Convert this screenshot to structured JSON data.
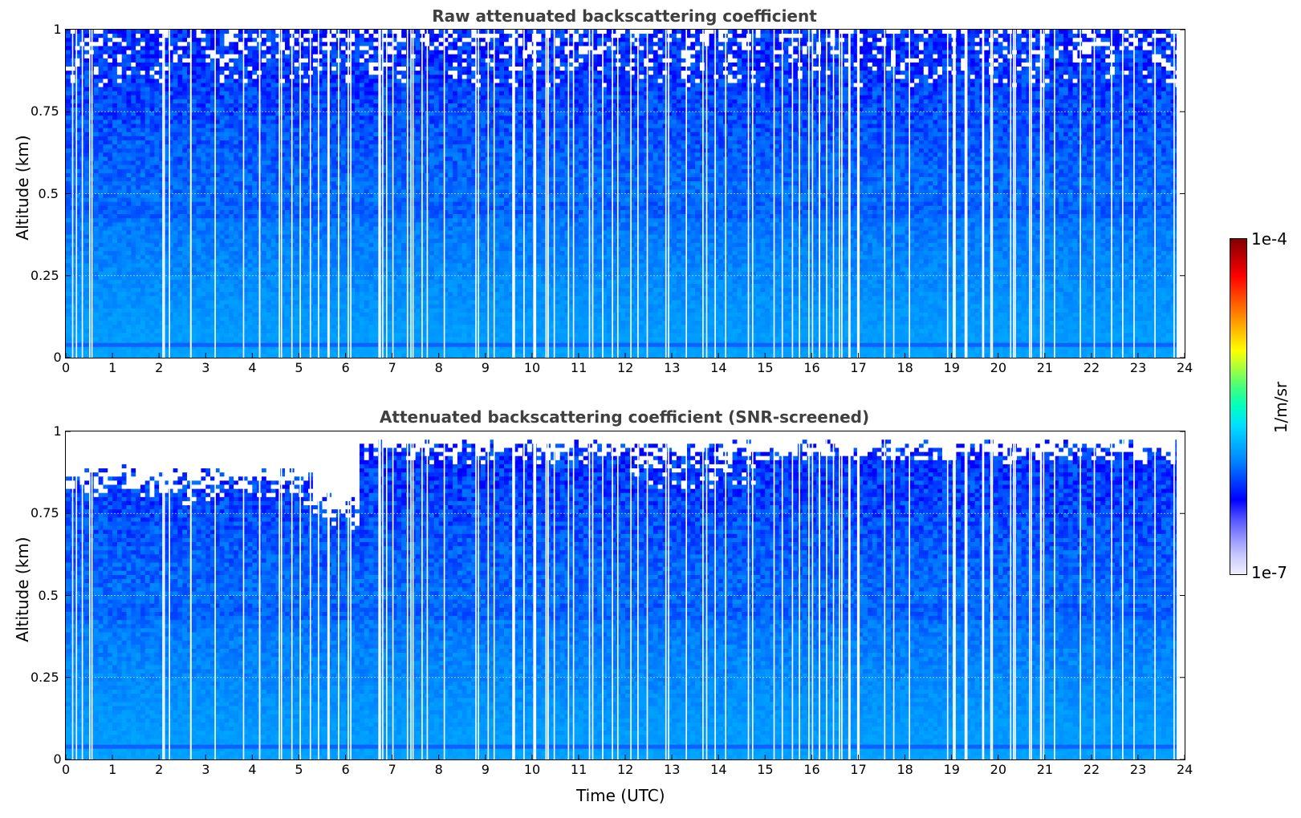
{
  "chart_data": [
    {
      "type": "heatmap",
      "title": "Raw attenuated backscattering coefficient",
      "xlabel": "",
      "ylabel": "Altitude (km)",
      "xlim": [
        0,
        24
      ],
      "ylim": [
        0,
        1
      ],
      "xticks": [
        "0",
        "1",
        "2",
        "3",
        "4",
        "5",
        "6",
        "7",
        "8",
        "9",
        "10",
        "11",
        "12",
        "13",
        "14",
        "15",
        "16",
        "17",
        "18",
        "19",
        "20",
        "21",
        "22",
        "23",
        "24"
      ],
      "yticks": [
        "0",
        "0.25",
        "0.5",
        "0.75",
        "1"
      ],
      "grid": true,
      "screened": false
    },
    {
      "type": "heatmap",
      "title": "Attenuated backscattering coefficient (SNR-screened)",
      "xlabel": "Time (UTC)",
      "ylabel": "Altitude (km)",
      "xlim": [
        0,
        24
      ],
      "ylim": [
        0,
        1
      ],
      "xticks": [
        "0",
        "1",
        "2",
        "3",
        "4",
        "5",
        "6",
        "7",
        "8",
        "9",
        "10",
        "11",
        "12",
        "13",
        "14",
        "15",
        "16",
        "17",
        "18",
        "19",
        "20",
        "21",
        "22",
        "23",
        "24"
      ],
      "yticks": [
        "0",
        "0.25",
        "0.5",
        "0.75",
        "1"
      ],
      "grid": true,
      "screened": true
    }
  ],
  "colorbar": {
    "max_label": "1e-4",
    "min_label": "1e-7",
    "units": "1/m/sr",
    "colors": [
      "#eeeeff",
      "#c8c8ff",
      "#9090ff",
      "#5050ff",
      "#0000ff",
      "#0040ff",
      "#0080ff",
      "#00b0ff",
      "#00e0ff",
      "#00ffc0",
      "#40ff80",
      "#a0ff40",
      "#ffff00",
      "#ffc000",
      "#ff8000",
      "#ff4000",
      "#ff0000",
      "#c00000",
      "#800000"
    ]
  }
}
